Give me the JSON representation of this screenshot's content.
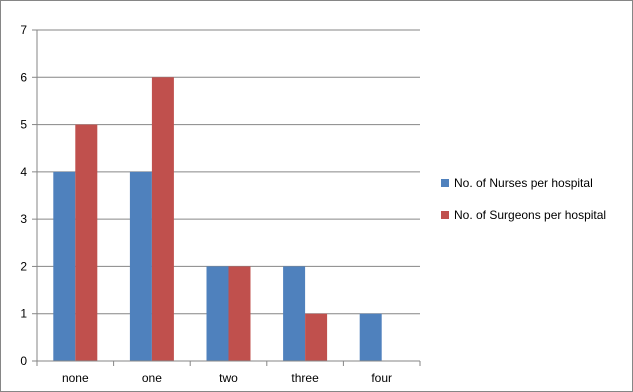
{
  "chart_data": {
    "type": "bar",
    "title": "",
    "xlabel": "",
    "ylabel": "",
    "categories": [
      "none",
      "one",
      "two",
      "three",
      "four"
    ],
    "series": [
      {
        "name": "No. of Nurses per hospital",
        "color": "#4f81bd",
        "values": [
          4,
          4,
          2,
          2,
          1
        ]
      },
      {
        "name": "No. of Surgeons per hospital",
        "color": "#c0504d",
        "values": [
          5,
          6,
          2,
          1,
          null
        ]
      }
    ],
    "ylim": [
      0,
      7
    ],
    "yticks": [
      "0",
      "1",
      "2",
      "3",
      "4",
      "5",
      "6",
      "7"
    ],
    "grid": true,
    "legend_position": "right"
  }
}
